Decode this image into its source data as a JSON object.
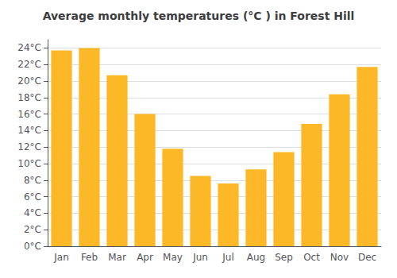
{
  "chart_data": {
    "type": "bar",
    "title": "Average monthly temperatures (°C ) in Forest Hill",
    "categories": [
      "Jan",
      "Feb",
      "Mar",
      "Apr",
      "May",
      "Jun",
      "Jul",
      "Aug",
      "Sep",
      "Oct",
      "Nov",
      "Dec"
    ],
    "values": [
      23.7,
      24.0,
      20.7,
      16.0,
      11.8,
      8.5,
      7.6,
      9.3,
      11.4,
      14.8,
      18.4,
      21.7
    ],
    "color": "#FDB827",
    "ylim": [
      0,
      25
    ],
    "yticks": [
      {
        "value": 0,
        "label": "0°C"
      },
      {
        "value": 2,
        "label": "2°C"
      },
      {
        "value": 4,
        "label": "4°C"
      },
      {
        "value": 6,
        "label": "6°C"
      },
      {
        "value": 8,
        "label": "8°C"
      },
      {
        "value": 10,
        "label": "10°C"
      },
      {
        "value": 12,
        "label": "12°C"
      },
      {
        "value": 14,
        "label": "14°C"
      },
      {
        "value": 16,
        "label": "16°C"
      },
      {
        "value": 18,
        "label": "18°C"
      },
      {
        "value": 20,
        "label": "20°C"
      },
      {
        "value": 22,
        "label": "22°C"
      },
      {
        "value": 24,
        "label": "24°C"
      }
    ],
    "grid": true
  }
}
